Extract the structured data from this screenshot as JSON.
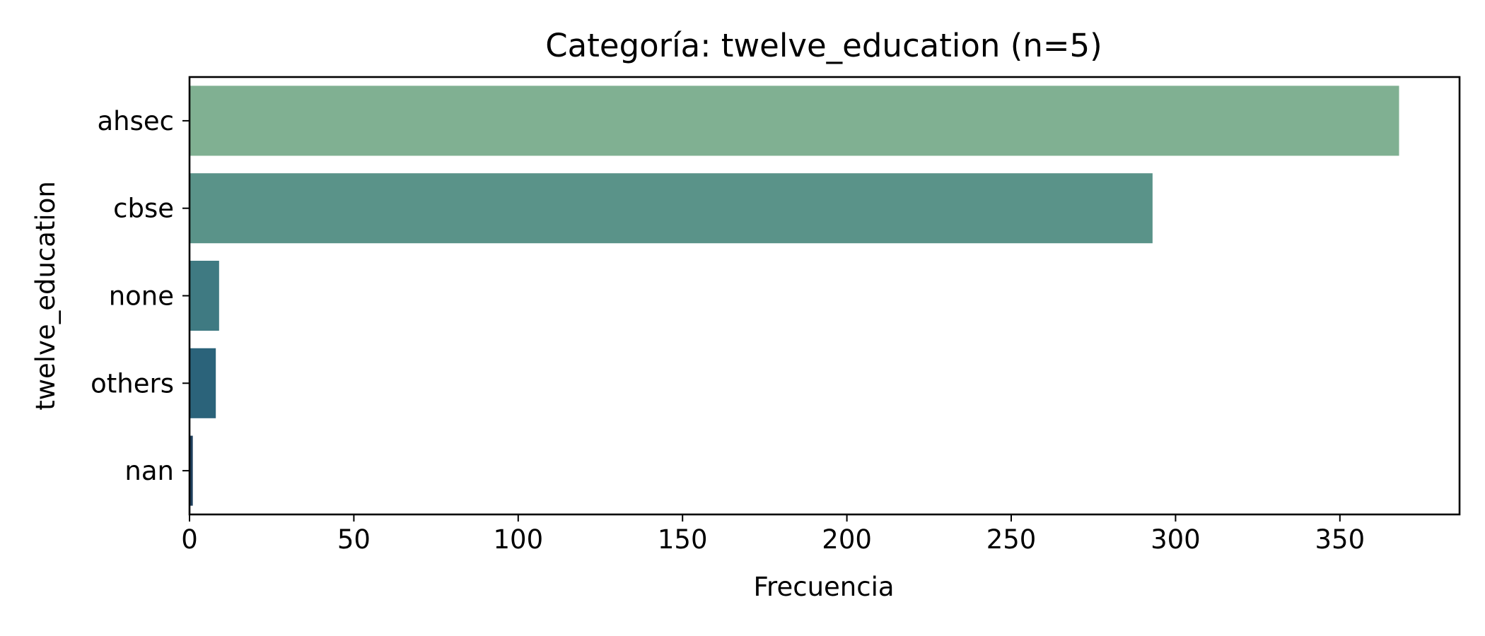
{
  "chart_data": {
    "type": "bar",
    "orientation": "horizontal",
    "title": "Categoría: twelve_education (n=5)",
    "xlabel": "Frecuencia",
    "ylabel": "twelve_education",
    "categories": [
      "ahsec",
      "cbse",
      "none",
      "others",
      "nan"
    ],
    "values": [
      368,
      293,
      9,
      8,
      1
    ],
    "colors": [
      "#80b092",
      "#5a9389",
      "#3f7a82",
      "#2b637a",
      "#1f3f5c"
    ],
    "xlim": [
      0,
      386.4
    ],
    "xticks": [
      0,
      50,
      100,
      150,
      200,
      250,
      300,
      350
    ],
    "grid": false,
    "legend": false
  }
}
